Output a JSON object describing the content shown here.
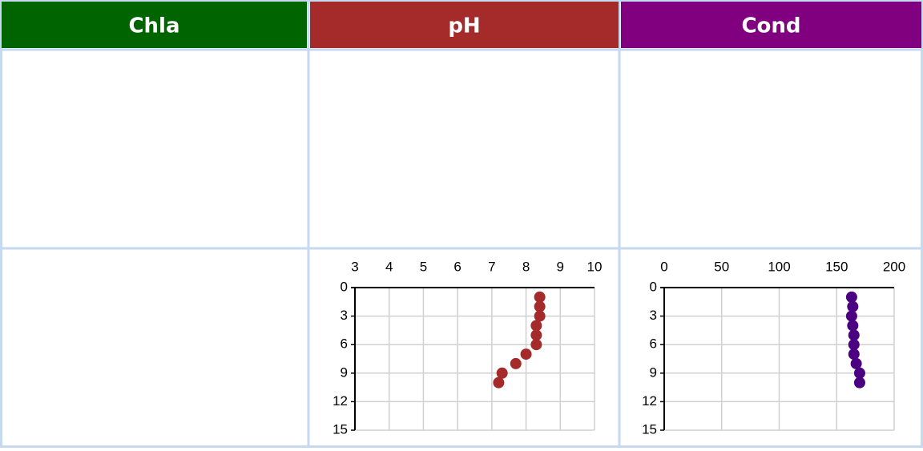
{
  "table": {
    "headers": [
      "Chla",
      "pH",
      "Cond"
    ],
    "header_colors": [
      "#006400",
      "#a52a2a",
      "#800080"
    ]
  },
  "chart_data": [
    {
      "type": "scatter",
      "x": [
        8.4,
        8.4,
        8.4,
        8.3,
        8.3,
        8.3,
        8.0,
        7.7,
        7.3,
        7.2
      ],
      "y": [
        1,
        2,
        3,
        4,
        5,
        6,
        7,
        8,
        9,
        10
      ],
      "color": "#a52a2a",
      "xlim": [
        3,
        10
      ],
      "xticks": [
        3,
        4,
        5,
        6,
        7,
        8,
        9,
        10
      ],
      "ylim": [
        0,
        15
      ],
      "yticks": [
        0,
        3,
        6,
        9,
        12,
        15
      ],
      "y_inverted": true,
      "x_axis_position": "top",
      "grid": true
    },
    {
      "type": "scatter",
      "x": [
        163,
        164,
        163,
        164,
        165,
        165,
        165,
        167,
        170,
        170
      ],
      "y": [
        1,
        2,
        3,
        4,
        5,
        6,
        7,
        8,
        9,
        10
      ],
      "color": "#4b0082",
      "xlim": [
        0,
        200
      ],
      "xticks": [
        0,
        50,
        100,
        150,
        200
      ],
      "ylim": [
        0,
        15
      ],
      "yticks": [
        0,
        3,
        6,
        9,
        12,
        15
      ],
      "y_inverted": true,
      "x_axis_position": "top",
      "grid": true
    }
  ]
}
